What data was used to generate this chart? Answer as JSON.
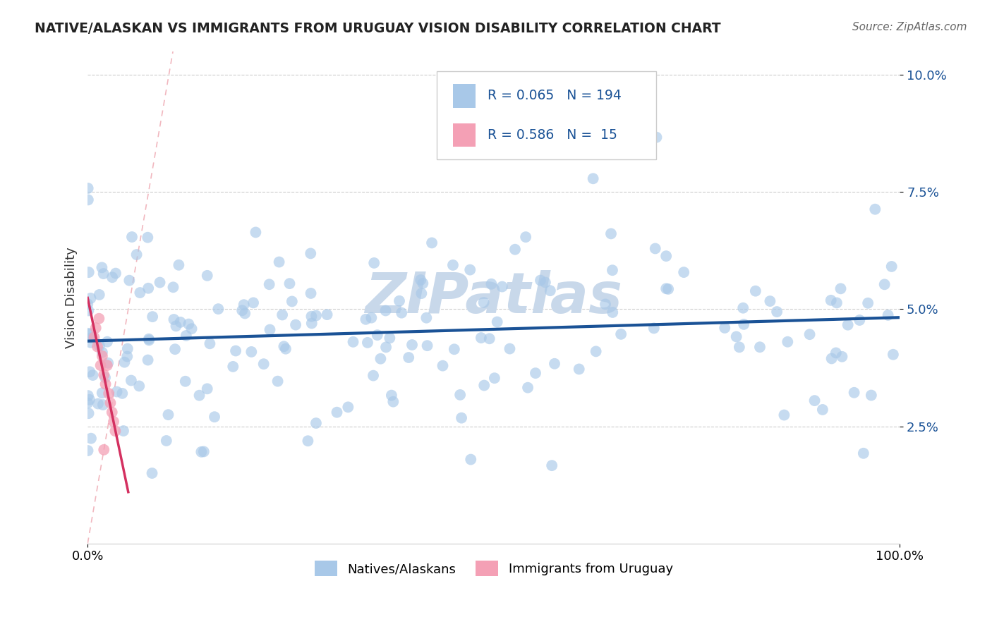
{
  "title": "NATIVE/ALASKAN VS IMMIGRANTS FROM URUGUAY VISION DISABILITY CORRELATION CHART",
  "source": "Source: ZipAtlas.com",
  "ylabel": "Vision Disability",
  "legend_entries": [
    "Natives/Alaskans",
    "Immigrants from Uruguay"
  ],
  "r_blue": "0.065",
  "n_blue": "194",
  "r_pink": "0.586",
  "n_pink": "15",
  "blue_color": "#a8c8e8",
  "pink_color": "#f4a0b5",
  "blue_line_color": "#1a5296",
  "pink_line_color": "#d43060",
  "diag_line_color": "#f0b0b8",
  "watermark": "ZIPatlas",
  "watermark_color": "#c8d8ea",
  "background_color": "#ffffff",
  "title_color": "#222222",
  "source_color": "#666666",
  "ytick_color": "#1a5296",
  "grid_color": "#cccccc",
  "legend_text_color": "#1a5296",
  "xlim": [
    0.0,
    1.0
  ],
  "ylim": [
    0.0,
    0.105
  ],
  "yticks": [
    0.025,
    0.05,
    0.075,
    0.1
  ],
  "ytick_labels": [
    "2.5%",
    "5.0%",
    "7.5%",
    "10.0%"
  ],
  "xtick_labels": [
    "0.0%",
    "100.0%"
  ]
}
